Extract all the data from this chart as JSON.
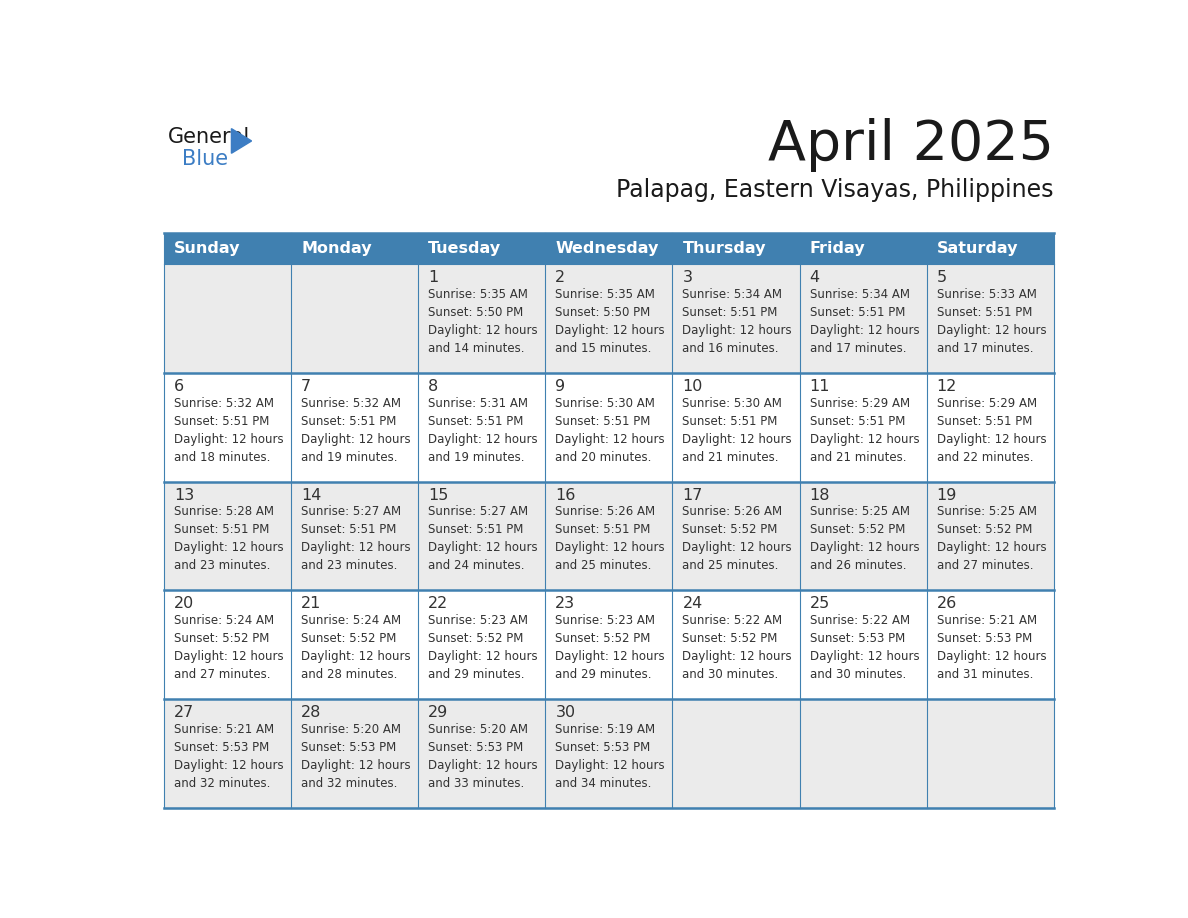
{
  "title": "April 2025",
  "subtitle": "Palapag, Eastern Visayas, Philippines",
  "days_of_week": [
    "Sunday",
    "Monday",
    "Tuesday",
    "Wednesday",
    "Thursday",
    "Friday",
    "Saturday"
  ],
  "header_bg": "#4080B0",
  "header_text": "#FFFFFF",
  "cell_bg_odd": "#EBEBEB",
  "cell_bg_even": "#FFFFFF",
  "line_color": "#4080B0",
  "text_color": "#333333",
  "title_color": "#1a1a1a",
  "logo_general_color": "#1a1a1a",
  "logo_blue_color": "#3C7DC4",
  "weeks": [
    [
      {
        "day": null,
        "info": null
      },
      {
        "day": null,
        "info": null
      },
      {
        "day": 1,
        "info": "Sunrise: 5:35 AM\nSunset: 5:50 PM\nDaylight: 12 hours\nand 14 minutes."
      },
      {
        "day": 2,
        "info": "Sunrise: 5:35 AM\nSunset: 5:50 PM\nDaylight: 12 hours\nand 15 minutes."
      },
      {
        "day": 3,
        "info": "Sunrise: 5:34 AM\nSunset: 5:51 PM\nDaylight: 12 hours\nand 16 minutes."
      },
      {
        "day": 4,
        "info": "Sunrise: 5:34 AM\nSunset: 5:51 PM\nDaylight: 12 hours\nand 17 minutes."
      },
      {
        "day": 5,
        "info": "Sunrise: 5:33 AM\nSunset: 5:51 PM\nDaylight: 12 hours\nand 17 minutes."
      }
    ],
    [
      {
        "day": 6,
        "info": "Sunrise: 5:32 AM\nSunset: 5:51 PM\nDaylight: 12 hours\nand 18 minutes."
      },
      {
        "day": 7,
        "info": "Sunrise: 5:32 AM\nSunset: 5:51 PM\nDaylight: 12 hours\nand 19 minutes."
      },
      {
        "day": 8,
        "info": "Sunrise: 5:31 AM\nSunset: 5:51 PM\nDaylight: 12 hours\nand 19 minutes."
      },
      {
        "day": 9,
        "info": "Sunrise: 5:30 AM\nSunset: 5:51 PM\nDaylight: 12 hours\nand 20 minutes."
      },
      {
        "day": 10,
        "info": "Sunrise: 5:30 AM\nSunset: 5:51 PM\nDaylight: 12 hours\nand 21 minutes."
      },
      {
        "day": 11,
        "info": "Sunrise: 5:29 AM\nSunset: 5:51 PM\nDaylight: 12 hours\nand 21 minutes."
      },
      {
        "day": 12,
        "info": "Sunrise: 5:29 AM\nSunset: 5:51 PM\nDaylight: 12 hours\nand 22 minutes."
      }
    ],
    [
      {
        "day": 13,
        "info": "Sunrise: 5:28 AM\nSunset: 5:51 PM\nDaylight: 12 hours\nand 23 minutes."
      },
      {
        "day": 14,
        "info": "Sunrise: 5:27 AM\nSunset: 5:51 PM\nDaylight: 12 hours\nand 23 minutes."
      },
      {
        "day": 15,
        "info": "Sunrise: 5:27 AM\nSunset: 5:51 PM\nDaylight: 12 hours\nand 24 minutes."
      },
      {
        "day": 16,
        "info": "Sunrise: 5:26 AM\nSunset: 5:51 PM\nDaylight: 12 hours\nand 25 minutes."
      },
      {
        "day": 17,
        "info": "Sunrise: 5:26 AM\nSunset: 5:52 PM\nDaylight: 12 hours\nand 25 minutes."
      },
      {
        "day": 18,
        "info": "Sunrise: 5:25 AM\nSunset: 5:52 PM\nDaylight: 12 hours\nand 26 minutes."
      },
      {
        "day": 19,
        "info": "Sunrise: 5:25 AM\nSunset: 5:52 PM\nDaylight: 12 hours\nand 27 minutes."
      }
    ],
    [
      {
        "day": 20,
        "info": "Sunrise: 5:24 AM\nSunset: 5:52 PM\nDaylight: 12 hours\nand 27 minutes."
      },
      {
        "day": 21,
        "info": "Sunrise: 5:24 AM\nSunset: 5:52 PM\nDaylight: 12 hours\nand 28 minutes."
      },
      {
        "day": 22,
        "info": "Sunrise: 5:23 AM\nSunset: 5:52 PM\nDaylight: 12 hours\nand 29 minutes."
      },
      {
        "day": 23,
        "info": "Sunrise: 5:23 AM\nSunset: 5:52 PM\nDaylight: 12 hours\nand 29 minutes."
      },
      {
        "day": 24,
        "info": "Sunrise: 5:22 AM\nSunset: 5:52 PM\nDaylight: 12 hours\nand 30 minutes."
      },
      {
        "day": 25,
        "info": "Sunrise: 5:22 AM\nSunset: 5:53 PM\nDaylight: 12 hours\nand 30 minutes."
      },
      {
        "day": 26,
        "info": "Sunrise: 5:21 AM\nSunset: 5:53 PM\nDaylight: 12 hours\nand 31 minutes."
      }
    ],
    [
      {
        "day": 27,
        "info": "Sunrise: 5:21 AM\nSunset: 5:53 PM\nDaylight: 12 hours\nand 32 minutes."
      },
      {
        "day": 28,
        "info": "Sunrise: 5:20 AM\nSunset: 5:53 PM\nDaylight: 12 hours\nand 32 minutes."
      },
      {
        "day": 29,
        "info": "Sunrise: 5:20 AM\nSunset: 5:53 PM\nDaylight: 12 hours\nand 33 minutes."
      },
      {
        "day": 30,
        "info": "Sunrise: 5:19 AM\nSunset: 5:53 PM\nDaylight: 12 hours\nand 34 minutes."
      },
      {
        "day": null,
        "info": null
      },
      {
        "day": null,
        "info": null
      },
      {
        "day": null,
        "info": null
      }
    ]
  ]
}
